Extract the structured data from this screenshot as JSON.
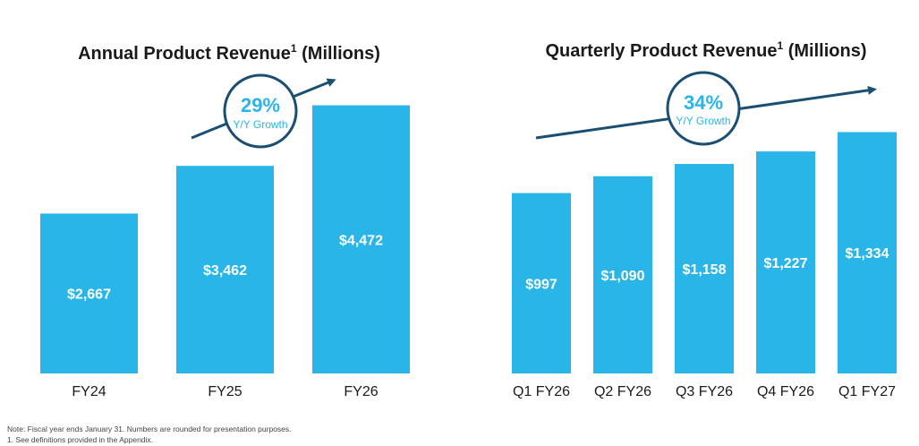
{
  "colors": {
    "bar": "#29b5e8",
    "arrow": "#1b4f72",
    "growth_text": "#29b5e8"
  },
  "chart_data": [
    {
      "type": "bar",
      "title": "Annual Product Revenue",
      "title_sup": "1",
      "title_suffix": " (Millions)",
      "categories": [
        "FY24",
        "FY25",
        "FY26"
      ],
      "values": [
        2667,
        3462,
        4472
      ],
      "value_labels": [
        "$2,667",
        "$3,462",
        "$4,472"
      ],
      "ylim": [
        0,
        4600
      ],
      "growth": {
        "pct": "29%",
        "label": "Y/Y Growth"
      }
    },
    {
      "type": "bar",
      "title": "Quarterly Product Revenue",
      "title_sup": "1",
      "title_suffix": " (Millions)",
      "categories": [
        "Q1 FY26",
        "Q2 FY26",
        "Q3 FY26",
        "Q4 FY26",
        "Q1 FY27"
      ],
      "values": [
        997,
        1090,
        1158,
        1227,
        1334
      ],
      "value_labels": [
        "$997",
        "$1,090",
        "$1,158",
        "$1,227",
        "$1,334"
      ],
      "ylim": [
        0,
        1480
      ],
      "growth": {
        "pct": "34%",
        "label": "Y/Y Growth"
      }
    }
  ],
  "footnotes": {
    "note": "Note: Fiscal year ends January 31. Numbers are rounded for presentation purposes.",
    "def": "1. See definitions provided in the Appendix."
  }
}
